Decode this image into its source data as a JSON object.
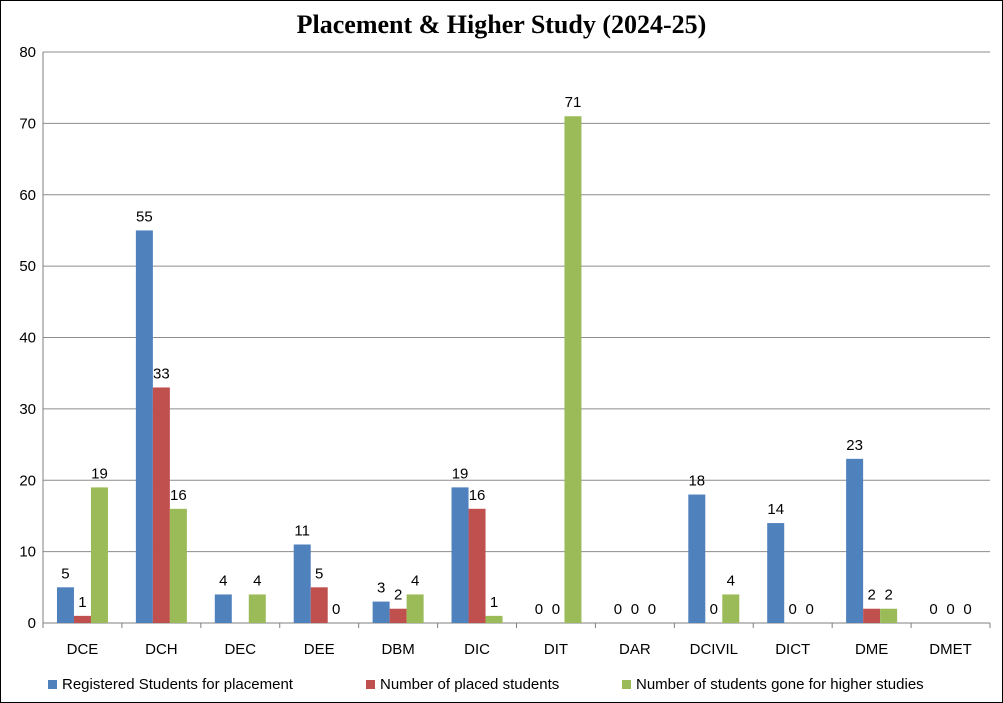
{
  "chart_data": {
    "type": "bar",
    "title": "Placement & Higher  Study (2024-25)",
    "categories": [
      "DCE",
      "DCH",
      "DEC",
      "DEE",
      "DBM",
      "DIC",
      "DIT",
      "DAR",
      "DCIVIL",
      "DICT",
      "DME",
      "DMET"
    ],
    "series": [
      {
        "name": "Registered Students for placement",
        "color": "#4f81bd",
        "values": [
          5,
          55,
          4,
          11,
          3,
          19,
          0,
          0,
          18,
          14,
          23,
          0
        ]
      },
      {
        "name": "Number of placed students",
        "color": "#c0504d",
        "values": [
          1,
          33,
          null,
          5,
          2,
          16,
          0,
          0,
          0,
          0,
          2,
          0
        ]
      },
      {
        "name": "Number of students gone for higher studies",
        "color": "#9bbb59",
        "values": [
          19,
          16,
          4,
          0,
          4,
          1,
          71,
          0,
          4,
          0,
          2,
          0
        ]
      }
    ],
    "ylim": [
      0,
      80
    ],
    "yticks": [
      0,
      10,
      20,
      30,
      40,
      50,
      60,
      70,
      80
    ],
    "grid": true,
    "legend": "bottom",
    "xlabel": "",
    "ylabel": ""
  }
}
